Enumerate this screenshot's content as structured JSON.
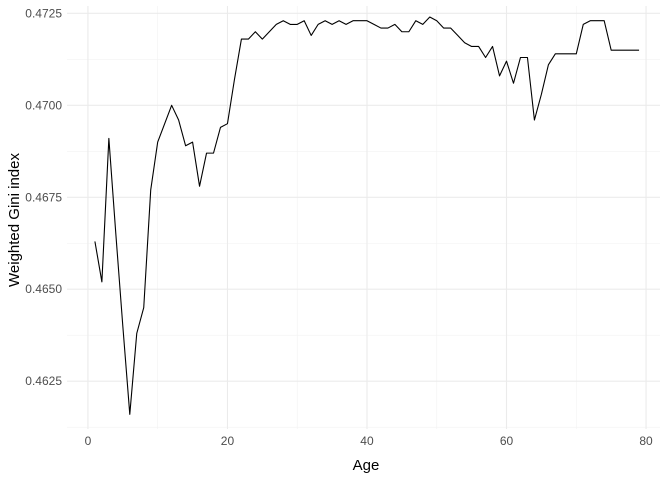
{
  "chart_data": {
    "type": "line",
    "xlabel": "Age",
    "ylabel": "Weighted Gini index",
    "xlim": [
      -3,
      82
    ],
    "ylim": [
      0.4612,
      0.4727
    ],
    "x_ticks": [
      0,
      20,
      40,
      60,
      80
    ],
    "y_ticks": [
      0.4625,
      0.465,
      0.4675,
      0.47,
      0.4725
    ],
    "y_tick_labels": [
      "0.4625",
      "0.4650",
      "0.4675",
      "0.4700",
      "0.4725"
    ],
    "grid": true,
    "line_color": "#000000",
    "series": [
      {
        "x": [
          1,
          2,
          3,
          4,
          5,
          6,
          7,
          8,
          9,
          10,
          11,
          12,
          13,
          14,
          15,
          16,
          17,
          18,
          19,
          20,
          21,
          22,
          23,
          24,
          25,
          26,
          27,
          28,
          29,
          30,
          31,
          32,
          33,
          34,
          35,
          36,
          37,
          38,
          39,
          40,
          41,
          42,
          43,
          44,
          45,
          46,
          47,
          48,
          49,
          50,
          51,
          52,
          53,
          54,
          55,
          56,
          57,
          58,
          59,
          60,
          61,
          62,
          63,
          64,
          65,
          66,
          67,
          68,
          69,
          70,
          71,
          72,
          73,
          74,
          75,
          76,
          77,
          78,
          79
        ],
        "values": [
          0.4663,
          0.4652,
          0.4691,
          0.4665,
          0.464,
          0.4616,
          0.4638,
          0.4645,
          0.4677,
          0.469,
          0.4695,
          0.47,
          0.4696,
          0.4689,
          0.469,
          0.4678,
          0.4687,
          0.4687,
          0.4694,
          0.4695,
          0.4707,
          0.4718,
          0.4718,
          0.472,
          0.4718,
          0.472,
          0.4722,
          0.4723,
          0.4722,
          0.4722,
          0.4723,
          0.4719,
          0.4722,
          0.4723,
          0.4722,
          0.4723,
          0.4722,
          0.4723,
          0.4723,
          0.4723,
          0.4722,
          0.4721,
          0.4721,
          0.4722,
          0.472,
          0.472,
          0.4723,
          0.4722,
          0.4724,
          0.4723,
          0.4721,
          0.4721,
          0.4719,
          0.4717,
          0.4716,
          0.4716,
          0.4713,
          0.4716,
          0.4708,
          0.4712,
          0.4706,
          0.4713,
          0.4713,
          0.4696,
          0.4703,
          0.4711,
          0.4714,
          0.4714,
          0.4714,
          0.4714,
          0.4722,
          0.4723,
          0.4723,
          0.4723,
          0.4715,
          0.4715,
          0.4715,
          0.4715,
          0.4715
        ]
      }
    ]
  }
}
